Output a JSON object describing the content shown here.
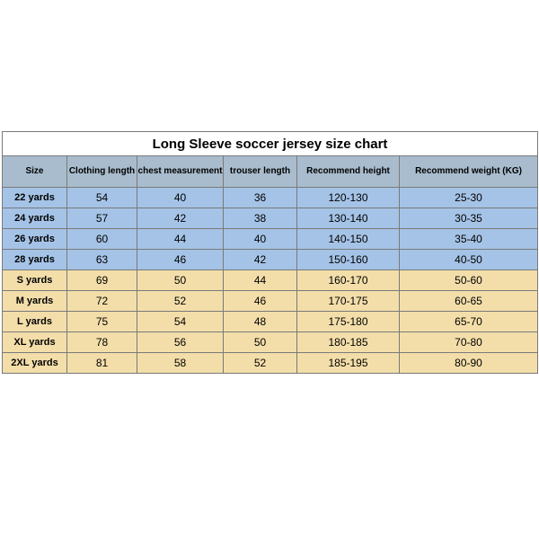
{
  "title": "Long Sleeve soccer jersey size chart",
  "columns": [
    "Size",
    "Clothing length",
    "chest measurement",
    "trouser length",
    "Recommend height",
    "Recommend weight (KG)"
  ],
  "header_bg": "#a8bccd",
  "group_colors": {
    "kids": "#a5c3e6",
    "adult": "#f3deaa"
  },
  "rows": [
    {
      "group": "kids",
      "cells": [
        "22 yards",
        "54",
        "40",
        "36",
        "120-130",
        "25-30"
      ]
    },
    {
      "group": "kids",
      "cells": [
        "24 yards",
        "57",
        "42",
        "38",
        "130-140",
        "30-35"
      ]
    },
    {
      "group": "kids",
      "cells": [
        "26 yards",
        "60",
        "44",
        "40",
        "140-150",
        "35-40"
      ]
    },
    {
      "group": "kids",
      "cells": [
        "28 yards",
        "63",
        "46",
        "42",
        "150-160",
        "40-50"
      ]
    },
    {
      "group": "adult",
      "cells": [
        "S yards",
        "69",
        "50",
        "44",
        "160-170",
        "50-60"
      ]
    },
    {
      "group": "adult",
      "cells": [
        "M yards",
        "72",
        "52",
        "46",
        "170-175",
        "60-65"
      ]
    },
    {
      "group": "adult",
      "cells": [
        "L yards",
        "75",
        "54",
        "48",
        "175-180",
        "65-70"
      ]
    },
    {
      "group": "adult",
      "cells": [
        "XL yards",
        "78",
        "56",
        "50",
        "180-185",
        "70-80"
      ]
    },
    {
      "group": "adult",
      "cells": [
        "2XL yards",
        "81",
        "58",
        "52",
        "185-195",
        "80-90"
      ]
    }
  ]
}
